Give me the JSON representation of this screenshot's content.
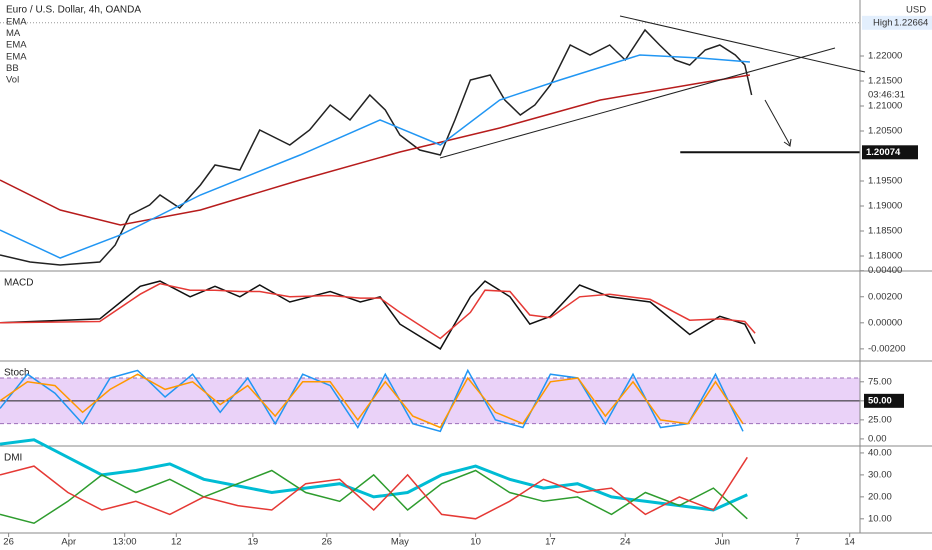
{
  "chart_data": [
    {
      "type": "line",
      "title": "Euro / U.S. Dollar, 4h, OANDA",
      "currency": "USD",
      "indicators": [
        "EMA",
        "MA",
        "EMA",
        "EMA",
        "BB",
        "Vol"
      ],
      "high_label": "High",
      "high": 1.22664,
      "countdown": "03:46:31",
      "level": 1.20074,
      "level_x": 79.1,
      "xlim": [
        0,
        100
      ],
      "xticks": [
        {
          "value": 1,
          "label": "26"
        },
        {
          "value": 8,
          "label": "Apr"
        },
        {
          "value": 14.5,
          "label": "13:00"
        },
        {
          "value": 20.5,
          "label": "12"
        },
        {
          "value": 29.4,
          "label": "19"
        },
        {
          "value": 38,
          "label": "26"
        },
        {
          "value": 46.5,
          "label": "May"
        },
        {
          "value": 55.3,
          "label": "10"
        },
        {
          "value": 64,
          "label": "17"
        },
        {
          "value": 72.7,
          "label": "24"
        },
        {
          "value": 84,
          "label": "Jun"
        },
        {
          "value": 92.7,
          "label": "7"
        },
        {
          "value": 98.8,
          "label": "14"
        }
      ],
      "ylim": [
        1.1772,
        1.2312
      ],
      "yticks": [
        {
          "value": 1.18,
          "label": "1.18000"
        },
        {
          "value": 1.185,
          "label": "1.18500"
        },
        {
          "value": 1.19,
          "label": "1.19000"
        },
        {
          "value": 1.195,
          "label": "1.19500"
        },
        {
          "value": 1.205,
          "label": "1.20500"
        },
        {
          "value": 1.21,
          "label": "1.21000"
        },
        {
          "value": 1.215,
          "label": "1.21500"
        },
        {
          "value": 1.22,
          "label": "1.22000"
        }
      ],
      "series": [
        {
          "color": "#222222",
          "x": [
            0,
            3.5,
            7,
            11.6,
            13.4,
            15.1,
            17.4,
            18.6,
            20.9,
            23.3,
            25,
            27.9,
            30.2,
            33.7,
            36,
            38.4,
            40.7,
            43,
            44.8,
            46.5,
            48.8,
            51.2,
            52.9,
            54.7,
            57,
            58.7,
            60.5,
            62.2,
            64,
            66.3,
            68.6,
            70.9,
            72.7,
            75,
            76.7,
            78.5,
            80.2,
            82,
            83.7,
            85.5,
            86.6,
            87.4
          ],
          "values": [
            1.1802,
            1.1788,
            1.1782,
            1.1788,
            1.1822,
            1.1882,
            1.1902,
            1.1922,
            1.1896,
            1.1942,
            1.1982,
            1.1972,
            1.2052,
            1.2022,
            1.2052,
            1.2102,
            1.2072,
            1.2122,
            1.2092,
            1.2042,
            1.2012,
            1.2002,
            1.2072,
            1.2152,
            1.2162,
            1.2112,
            1.2082,
            1.2102,
            1.2142,
            1.2222,
            1.2202,
            1.2222,
            1.2192,
            1.2252,
            1.2222,
            1.2192,
            1.2182,
            1.2212,
            1.2222,
            1.2202,
            1.2182,
            1.2122
          ]
        },
        {
          "color": "#b71c1c",
          "x": [
            0,
            7,
            14,
            23.3,
            34.9,
            46.5,
            58.1,
            69.8,
            81.4,
            87.2
          ],
          "values": [
            1.1952,
            1.1892,
            1.1862,
            1.1892,
            1.1952,
            1.2008,
            1.2056,
            1.2112,
            1.2146,
            1.2162
          ]
        },
        {
          "color": "#2196f3",
          "x": [
            0,
            7,
            14,
            23.3,
            34.9,
            44.2,
            51.2,
            58.1,
            65.1,
            74.4,
            81.4,
            87.2
          ],
          "values": [
            1.1852,
            1.1796,
            1.1842,
            1.1922,
            1.2002,
            1.2072,
            1.2022,
            1.2112,
            1.2152,
            1.2202,
            1.2196,
            1.2188
          ]
        }
      ]
    },
    {
      "type": "line",
      "title": "MACD",
      "ylim": [
        -0.0027,
        0.0039
      ],
      "yticks": [
        {
          "value": 0.004,
          "label": "0.00400"
        },
        {
          "value": 0.002,
          "label": "0.00200"
        },
        {
          "value": 0,
          "label": "0.00000"
        },
        {
          "value": -0.002,
          "label": "-0.00200"
        }
      ],
      "series": [
        {
          "color": "#111111",
          "x": [
            0,
            11.6,
            16.3,
            18.6,
            22.1,
            25,
            27.9,
            30.2,
            33.7,
            38.4,
            41.9,
            44.2,
            46.5,
            51.2,
            54.7,
            56.4,
            59.3,
            61.6,
            64,
            67.4,
            70.9,
            75.6,
            80.2,
            83.7,
            86.6,
            87.8
          ],
          "values": [
            0,
            0.0003,
            0.0028,
            0.0032,
            0.002,
            0.0028,
            0.002,
            0.0029,
            0.0016,
            0.0024,
            0.0016,
            0.002,
            -0.0001,
            -0.002,
            0.002,
            0.0032,
            0.002,
            -0.0001,
            0.0005,
            0.0029,
            0.002,
            0.0016,
            -0.0009,
            0.0005,
            -0.0001,
            -0.0016
          ]
        },
        {
          "color": "#e53935",
          "x": [
            0,
            11.6,
            16.3,
            18.6,
            22.1,
            25,
            27.9,
            30.2,
            33.7,
            38.4,
            41.9,
            44.2,
            46.5,
            51.2,
            54.7,
            56.4,
            59.3,
            61.6,
            64,
            67.4,
            70.9,
            75.6,
            80.2,
            83.7,
            86.6,
            87.8
          ],
          "values": [
            0,
            0.0001,
            0.0022,
            0.003,
            0.0025,
            0.0025,
            0.0024,
            0.0024,
            0.002,
            0.0021,
            0.0019,
            0.0019,
            0.0008,
            -0.0012,
            0.0008,
            0.0025,
            0.0024,
            0.0006,
            0.0004,
            0.002,
            0.0022,
            0.0018,
            0.0002,
            0.0003,
            0.0001,
            -0.0008
          ]
        }
      ]
    },
    {
      "type": "line",
      "title": "Stoch",
      "ylim": [
        -8,
        101
      ],
      "band": [
        20,
        80
      ],
      "midline": 50,
      "yticks": [
        {
          "value": 0,
          "label": "0.00"
        },
        {
          "value": 25,
          "label": "25.00"
        },
        {
          "value": 50,
          "label": "50.00"
        },
        {
          "value": 75,
          "label": "75.00"
        }
      ],
      "series": [
        {
          "color": "#2196f3",
          "x": [
            0,
            3.2,
            6.4,
            9.6,
            12.8,
            16,
            19.2,
            22.4,
            25.6,
            28.8,
            32,
            35.2,
            38.4,
            41.6,
            44.8,
            48,
            51.2,
            54.4,
            57.6,
            60.8,
            64,
            67.2,
            70.4,
            73.6,
            76.8,
            80,
            83.2,
            86.4
          ],
          "values": [
            40,
            85,
            60,
            20,
            80,
            90,
            55,
            85,
            35,
            80,
            20,
            85,
            70,
            15,
            85,
            20,
            10,
            90,
            25,
            15,
            85,
            80,
            20,
            85,
            15,
            20,
            85,
            10
          ]
        },
        {
          "color": "#ff9800",
          "x": [
            0,
            3.2,
            6.4,
            9.6,
            12.8,
            16,
            19.2,
            22.4,
            25.6,
            28.8,
            32,
            35.2,
            38.4,
            41.6,
            44.8,
            48,
            51.2,
            54.4,
            57.6,
            60.8,
            64,
            67.2,
            70.4,
            73.6,
            76.8,
            80,
            83.2,
            86.4
          ],
          "values": [
            50,
            75,
            70,
            35,
            65,
            85,
            65,
            75,
            45,
            70,
            30,
            75,
            75,
            25,
            75,
            30,
            15,
            80,
            35,
            20,
            75,
            80,
            30,
            75,
            25,
            20,
            75,
            20
          ]
        }
      ]
    },
    {
      "type": "line",
      "title": "DMI",
      "ylim": [
        4,
        42.7
      ],
      "yticks": [
        {
          "value": 10,
          "label": "10.00"
        },
        {
          "value": 20,
          "label": "20.00"
        },
        {
          "value": 30,
          "label": "30.00"
        },
        {
          "value": 40,
          "label": "40.00"
        }
      ],
      "series": [
        {
          "color": "#00bcd4",
          "width": 3,
          "x": [
            0,
            3.95,
            7.9,
            11.85,
            15.8,
            19.75,
            23.7,
            27.65,
            31.6,
            35.55,
            39.5,
            43.45,
            47.4,
            51.35,
            55.3,
            59.25,
            63.2,
            67.15,
            71.1,
            75.05,
            79,
            82.95,
            86.9
          ],
          "values": [
            44,
            46,
            38,
            30,
            32,
            35,
            28,
            25,
            22,
            24,
            26,
            20,
            22,
            30,
            34,
            28,
            24,
            26,
            20,
            18,
            16,
            14,
            21
          ]
        },
        {
          "color": "#2e9c2e",
          "x": [
            0,
            3.95,
            7.9,
            11.85,
            15.8,
            19.75,
            23.7,
            27.65,
            31.6,
            35.55,
            39.5,
            43.45,
            47.4,
            51.35,
            55.3,
            59.25,
            63.2,
            67.15,
            71.1,
            75.05,
            79,
            82.95,
            86.9
          ],
          "values": [
            12,
            8,
            18,
            30,
            22,
            28,
            20,
            26,
            32,
            22,
            18,
            30,
            14,
            26,
            32,
            22,
            18,
            20,
            12,
            22,
            16,
            24,
            10
          ]
        },
        {
          "color": "#e53935",
          "x": [
            0,
            3.95,
            7.9,
            11.85,
            15.8,
            19.75,
            23.7,
            27.65,
            31.6,
            35.55,
            39.5,
            43.45,
            47.4,
            51.35,
            55.3,
            59.25,
            63.2,
            67.15,
            71.1,
            75.05,
            79,
            82.95,
            86.9
          ],
          "values": [
            30,
            34,
            22,
            14,
            18,
            12,
            20,
            16,
            14,
            26,
            28,
            14,
            30,
            12,
            10,
            18,
            28,
            22,
            24,
            12,
            20,
            14,
            38
          ]
        }
      ]
    }
  ]
}
